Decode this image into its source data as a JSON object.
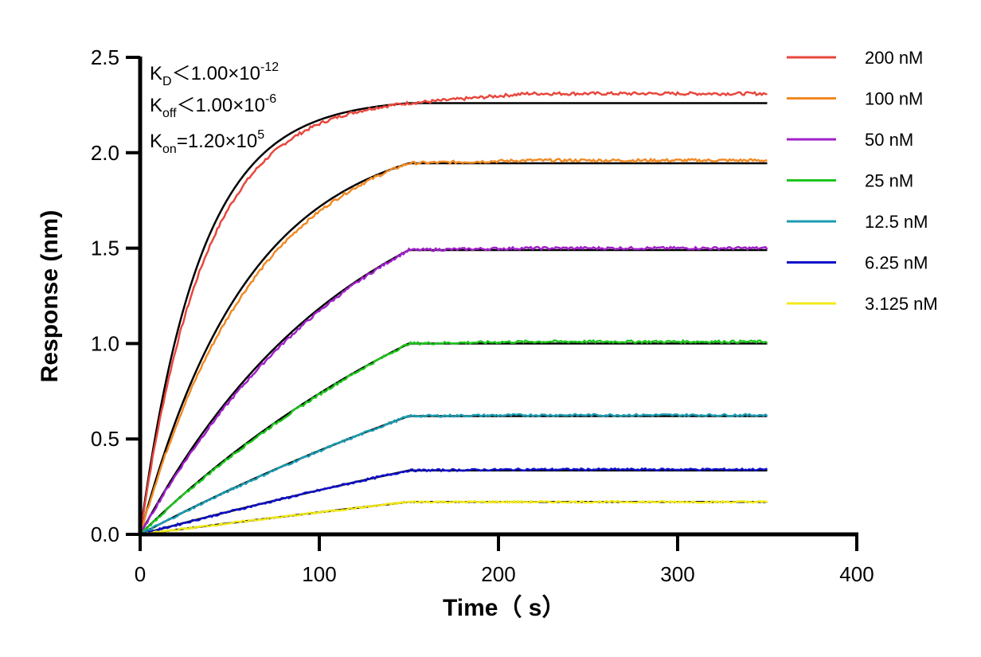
{
  "chart_data": {
    "type": "line",
    "title": "",
    "xlabel": "Time（ s）",
    "ylabel": "Response (nm)",
    "xlim": [
      0,
      400
    ],
    "ylim": [
      0,
      2.5
    ],
    "x_ticks": [
      "0",
      "100",
      "200",
      "300",
      "400"
    ],
    "y_ticks": [
      "0.0",
      "0.5",
      "1.0",
      "1.5",
      "2.0",
      "2.5"
    ],
    "grid": false,
    "legend_position": "right",
    "association_end": 150,
    "dissociation_end": 350,
    "annotations": {
      "kd": {
        "base": "K",
        "sub": "D",
        "rel": "＜1.00×10",
        "exp": "-12"
      },
      "koff": {
        "base": "K",
        "sub": "off",
        "rel": "＜1.00×10",
        "exp": "-6"
      },
      "kon": {
        "base": "K",
        "sub": "on",
        "rel": "=1.20×10",
        "exp": "5"
      }
    },
    "series": [
      {
        "name": "200 nM",
        "color": "#e8473d",
        "plateau": 2.26,
        "observed_end": 2.31,
        "rate": 0.03
      },
      {
        "name": "100 nM",
        "color": "#f08a24",
        "plateau": 1.945,
        "observed_end": 1.96,
        "rate": 0.0165
      },
      {
        "name": "50 nM",
        "color": "#a021c8",
        "plateau": 1.49,
        "observed_end": 1.5,
        "rate": 0.0085
      },
      {
        "name": "25 nM",
        "color": "#1ec41e",
        "plateau": 1.0,
        "observed_end": 1.01,
        "rate": 0.0045
      },
      {
        "name": "12.5 nM",
        "color": "#1b9bb0",
        "plateau": 0.62,
        "observed_end": 0.625,
        "rate": 0.0025
      },
      {
        "name": "6.25 nM",
        "color": "#1010c8",
        "plateau": 0.335,
        "observed_end": 0.34,
        "rate": 0.0015
      },
      {
        "name": "3.125 nM",
        "color": "#f2ea1a",
        "plateau": 0.17,
        "observed_end": 0.17,
        "rate": 0.0008
      }
    ],
    "fit_color": "#000000"
  }
}
